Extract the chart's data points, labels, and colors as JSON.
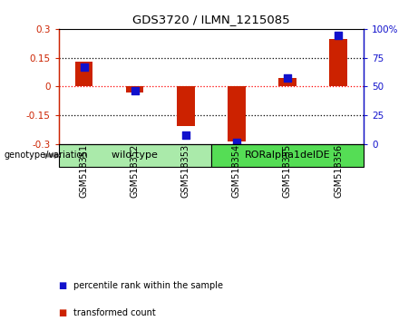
{
  "title": "GDS3720 / ILMN_1215085",
  "categories": [
    "GSM518351",
    "GSM518352",
    "GSM518353",
    "GSM518354",
    "GSM518355",
    "GSM518356"
  ],
  "bar_values": [
    0.13,
    -0.03,
    -0.205,
    -0.285,
    0.045,
    0.245
  ],
  "dot_values": [
    67,
    46,
    8,
    1,
    57,
    94
  ],
  "bar_color": "#cc2200",
  "dot_color": "#1111cc",
  "ylim_left": [
    -0.3,
    0.3
  ],
  "ylim_right": [
    0,
    100
  ],
  "yticks_left": [
    -0.3,
    -0.15,
    0,
    0.15,
    0.3
  ],
  "yticks_right": [
    0,
    25,
    50,
    75,
    100
  ],
  "groups": [
    {
      "label": "wild type",
      "indices": [
        0,
        1,
        2
      ],
      "color": "#aaeaaa"
    },
    {
      "label": "RORalpha1delDE",
      "indices": [
        3,
        4,
        5
      ],
      "color": "#55dd55"
    }
  ],
  "group_label": "genotype/variation",
  "legend_items": [
    {
      "label": "transformed count",
      "color": "#cc2200"
    },
    {
      "label": "percentile rank within the sample",
      "color": "#1111cc"
    }
  ],
  "background_color": "#ffffff",
  "label_bg_color": "#cccccc",
  "bar_width": 0.35,
  "dot_size": 40
}
